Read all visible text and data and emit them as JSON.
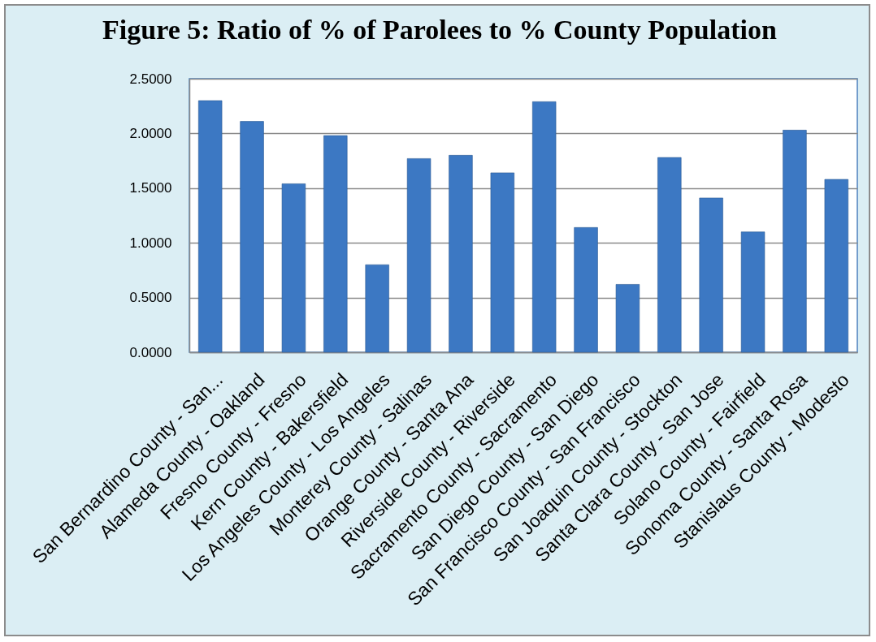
{
  "chart_data": {
    "type": "bar",
    "title": "Figure 5: Ratio of % of Parolees to % County Population",
    "categories": [
      "San Bernardino County - San...",
      "Alameda County - Oakland",
      "Fresno County - Fresno",
      "Kern County - Bakersfield",
      "Los Angeles County - Los Angeles",
      "Monterey County - Salinas",
      "Orange County - Santa Ana",
      "Riverside County - Riverside",
      "Sacramento County - Sacramento",
      "San Diego County - San Diego",
      "San Francisco County - San Francisco",
      "San Joaquin County - Stockton",
      "Santa Clara County - San Jose",
      "Solano County - Fairfield",
      "Sonoma County - Santa Rosa",
      "Stanislaus County - Modesto"
    ],
    "values": [
      2.3,
      2.11,
      1.54,
      1.98,
      0.8,
      1.77,
      1.8,
      1.64,
      2.29,
      1.14,
      0.62,
      1.78,
      1.41,
      1.1,
      2.03,
      1.58
    ],
    "color": "#3c78c3",
    "ylim": [
      0,
      2.5
    ],
    "yticks": [
      {
        "value": 0,
        "label": "0.0000"
      },
      {
        "value": 0.5,
        "label": "0.5000"
      },
      {
        "value": 1,
        "label": "1.0000"
      },
      {
        "value": 1.5,
        "label": "1.5000"
      },
      {
        "value": 2,
        "label": "2.0000"
      },
      {
        "value": 2.5,
        "label": "2.5000"
      }
    ],
    "grid": true
  }
}
